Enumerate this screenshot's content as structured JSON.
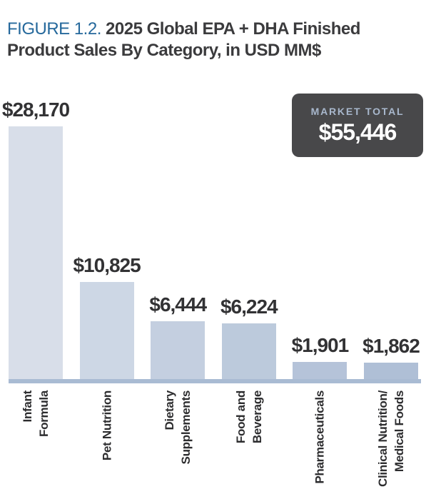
{
  "header": {
    "figure_label": "FIGURE 1.2.",
    "title": "2025 Global EPA + DHA Finished\nProduct Sales By Category, in USD MM$"
  },
  "market_total": {
    "label": "MARKET TOTAL",
    "value": "$55,446"
  },
  "chart_data": {
    "type": "bar",
    "title": "2025 Global EPA + DHA Finished Product Sales By Category, in USD MM$",
    "unit": "USD MM$",
    "market_total": 55446,
    "categories": [
      "Infant Formula",
      "Pet Nutrition",
      "Dietary Supplements",
      "Food and Beverage",
      "Pharmaceuticals",
      "Clinical Nutrition/ Medical Foods"
    ],
    "values": [
      28170,
      10825,
      6444,
      6224,
      1901,
      1862
    ],
    "points": [
      {
        "category": "Infant\nFormula",
        "value": 28170,
        "label": "$28,170",
        "color": "#d8dee9"
      },
      {
        "category": "Pet Nutrition",
        "value": 10825,
        "label": "$10,825",
        "color": "#cdd7e5"
      },
      {
        "category": "Dietary\nSupplements",
        "value": 6444,
        "label": "$6,444",
        "color": "#c4cfe0"
      },
      {
        "category": "Food and\nBeverage",
        "value": 6224,
        "label": "$6,224",
        "color": "#bccadc"
      },
      {
        "category": "Pharmaceuticals",
        "value": 1901,
        "label": "$1,901",
        "color": "#b5c3d9"
      },
      {
        "category": "Clinical Nutrition/\nMedical Foods",
        "value": 1862,
        "label": "$1,862",
        "color": "#afbfd6"
      }
    ],
    "axis_color": "#a9bbd3",
    "value_label_color": "#323234",
    "category_label_rotation_deg": -90,
    "ylim": [
      0,
      28170
    ],
    "gridlines": false,
    "legend": "none"
  }
}
